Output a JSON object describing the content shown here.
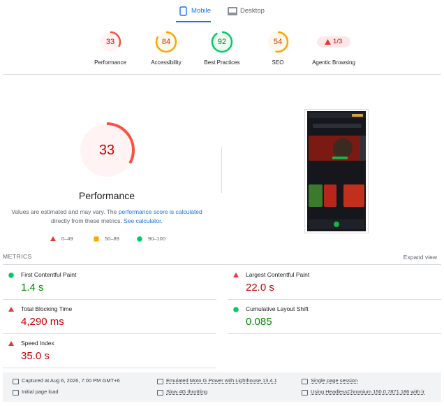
{
  "tabs": [
    {
      "label": "Mobile",
      "active": true
    },
    {
      "label": "Desktop",
      "active": false
    }
  ],
  "categories": [
    {
      "label": "Performance",
      "score": 33
    },
    {
      "label": "Accessibility",
      "score": 84
    },
    {
      "label": "Best Practices",
      "score": 92
    },
    {
      "label": "SEO",
      "score": 54
    },
    {
      "label": "Agentic Browsing",
      "score_label": "1/3"
    }
  ],
  "main": {
    "score": 33,
    "title": "Performance",
    "note_before": "Values are estimated and may vary. The",
    "link1": "performance score is calculated",
    "note_mid": "directly from these metrics.",
    "link2": "See calculator.",
    "legend": [
      "0–49",
      "50–89",
      "90–100"
    ]
  },
  "metrics": {
    "heading": "METRICS",
    "expand": "Expand view",
    "items": [
      {
        "name": "First Contentful Paint",
        "value": "1.4 s",
        "rating": "pass"
      },
      {
        "name": "Largest Contentful Paint",
        "value": "22.0 s",
        "rating": "fail"
      },
      {
        "name": "Total Blocking Time",
        "value": "4,290 ms",
        "rating": "fail"
      },
      {
        "name": "Cumulative Layout Shift",
        "value": "0.085",
        "rating": "pass"
      },
      {
        "name": "Speed Index",
        "value": "35.0 s",
        "rating": "fail"
      }
    ]
  },
  "footer": [
    "Captured at Aug 6, 2026, 7:00 PM GMT+6",
    "Emulated Moto G Power with Lighthouse 13.4.1",
    "Single page session",
    "Initial page load",
    "Slow 4G throttling",
    "Using HeadlessChromium 150.0.7871.186 with lr"
  ]
}
